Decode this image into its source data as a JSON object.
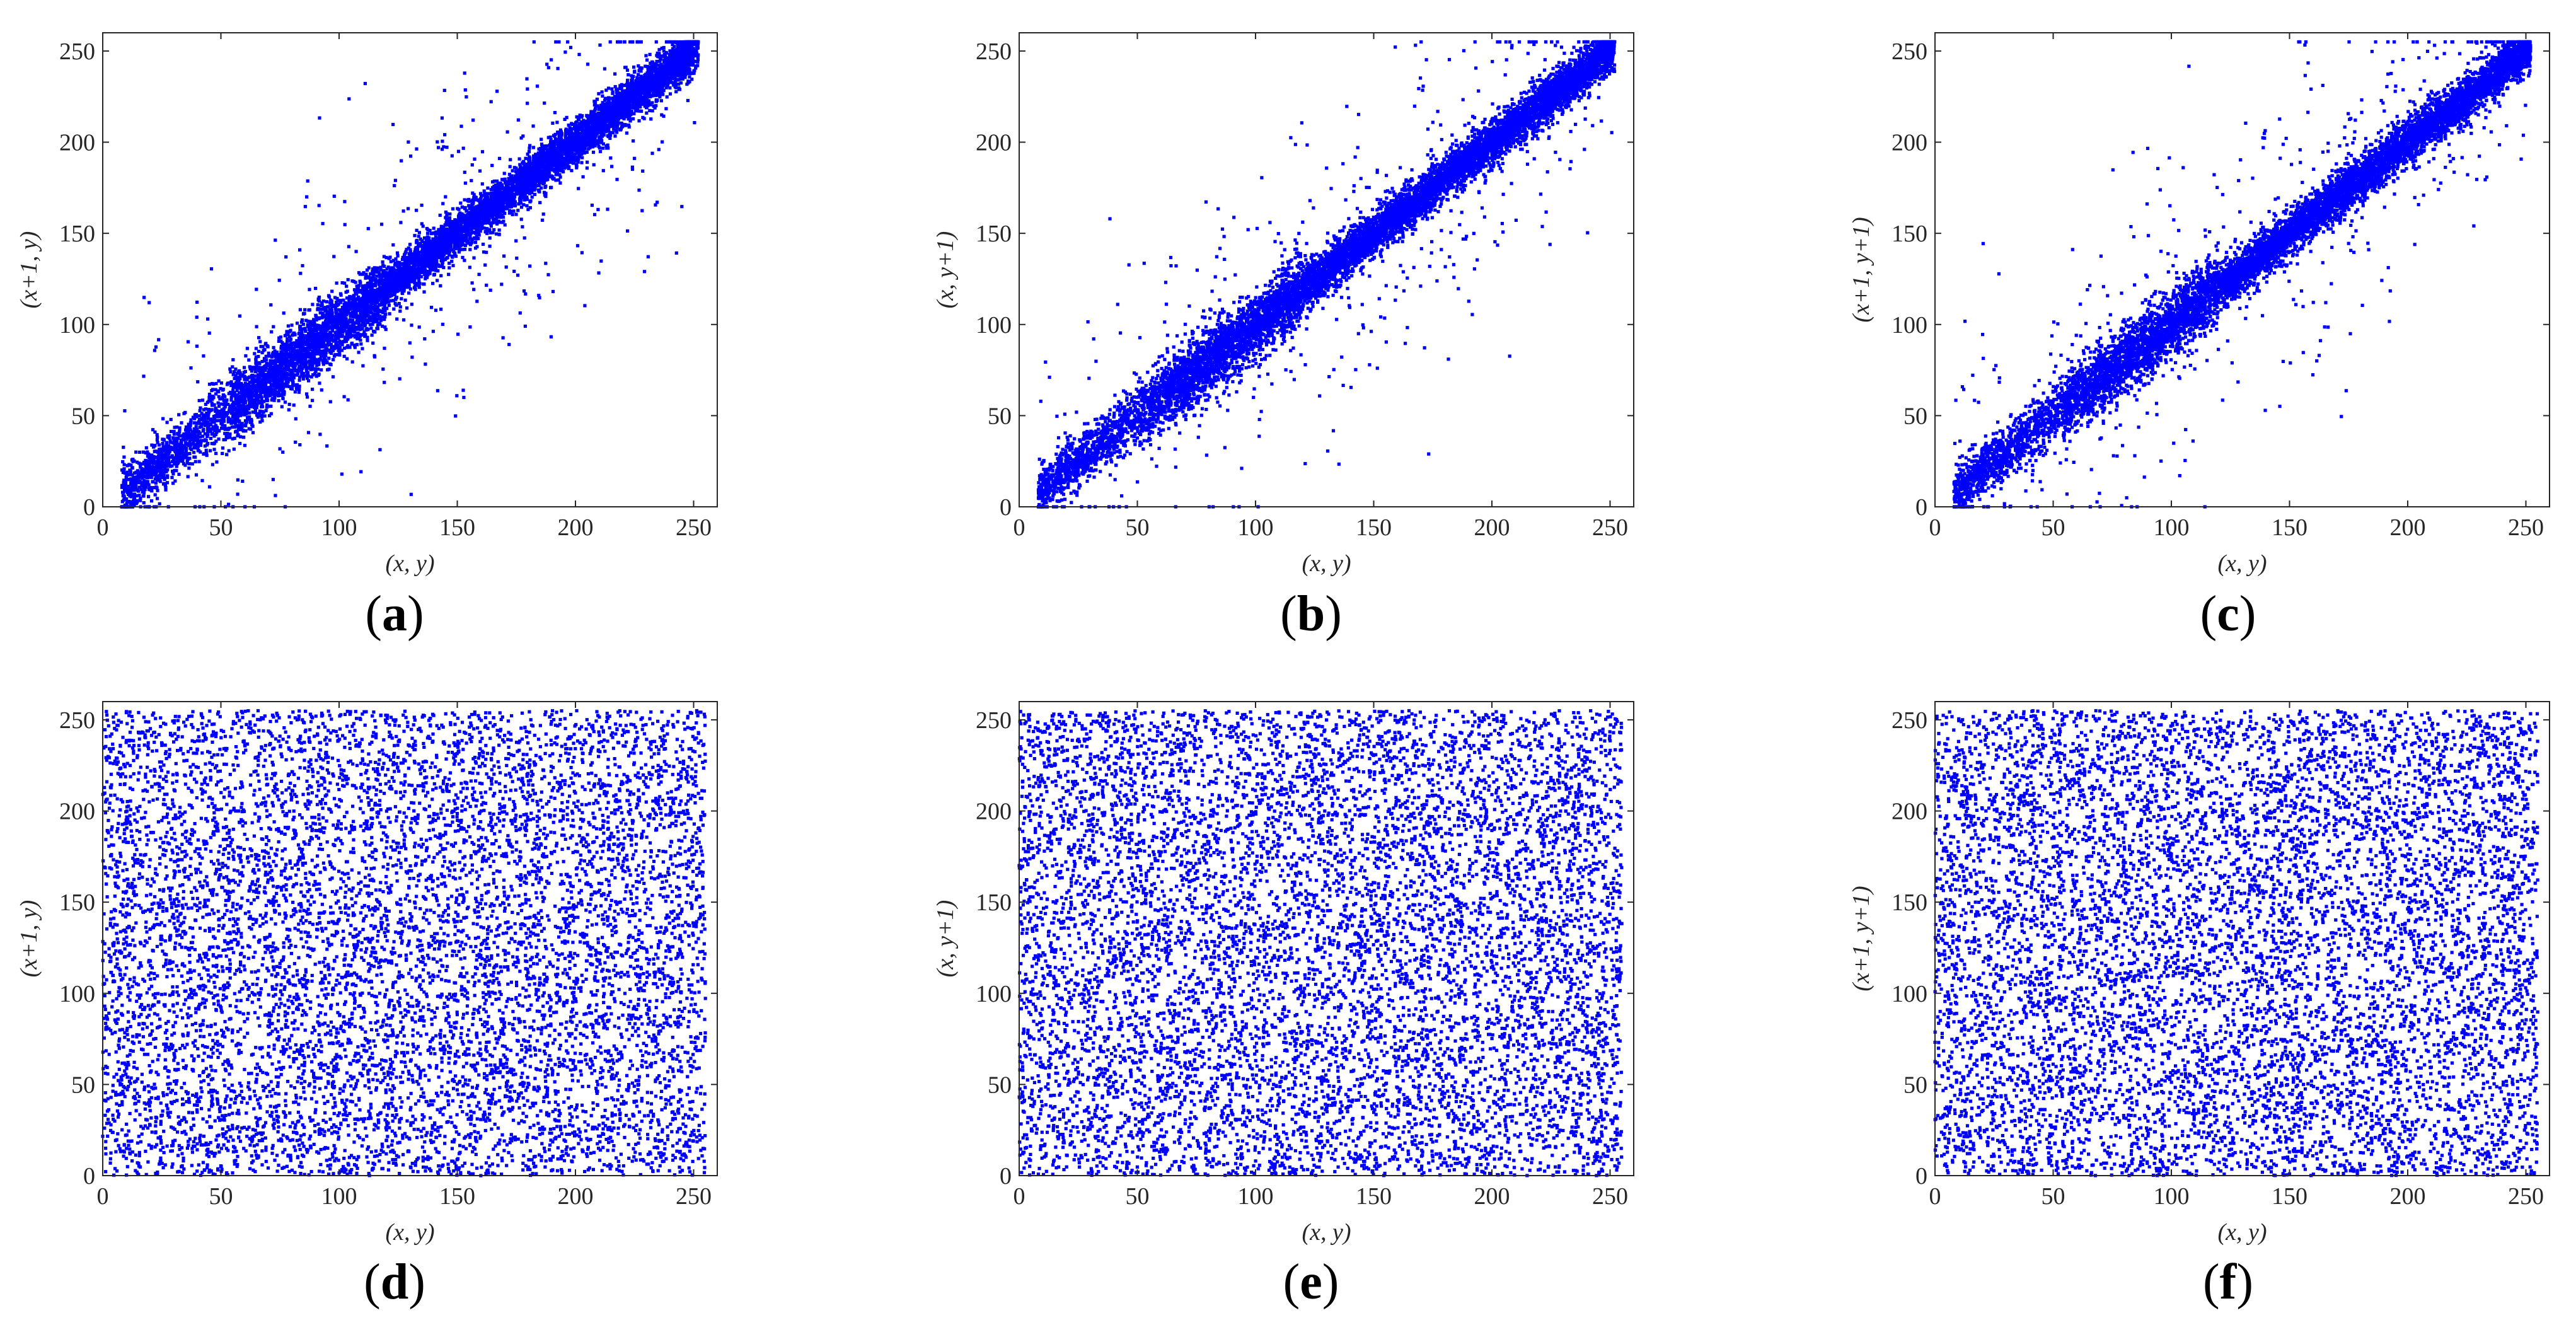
{
  "colors": {
    "points": "#0000ff",
    "axes": "#262626",
    "background": "#ffffff"
  },
  "chart_data": [
    {
      "id": "a",
      "type": "scatter",
      "panel_label": "a",
      "xlabel": "(x, y)",
      "ylabel": "(x+1, y)",
      "xlim": [
        0,
        260
      ],
      "ylim": [
        0,
        260
      ],
      "xticks": [
        0,
        50,
        100,
        150,
        200,
        250
      ],
      "yticks": [
        0,
        50,
        100,
        150,
        200,
        250
      ],
      "distribution": "correlated",
      "correlation": "strong",
      "n_points": 9000,
      "series": [
        {
          "values": [
            [
              12,
              15
            ],
            [
              20,
              24
            ],
            [
              25,
              20
            ],
            [
              45,
              52
            ],
            [
              60,
              58
            ],
            [
              75,
              80
            ],
            [
              100,
              98
            ],
            [
              120,
              125
            ],
            [
              150,
              148
            ],
            [
              175,
              180
            ],
            [
              200,
              198
            ],
            [
              225,
              228
            ],
            [
              245,
              248
            ]
          ]
        }
      ],
      "grid": false
    },
    {
      "id": "b",
      "type": "scatter",
      "panel_label": "b",
      "xlabel": "(x, y)",
      "ylabel": "(x, y+1)",
      "xlim": [
        0,
        260
      ],
      "ylim": [
        0,
        260
      ],
      "xticks": [
        0,
        50,
        100,
        150,
        200,
        250
      ],
      "yticks": [
        0,
        50,
        100,
        150,
        200,
        250
      ],
      "distribution": "correlated",
      "correlation": "strong",
      "n_points": 9000,
      "series": [
        {
          "values": [
            [
              12,
              18
            ],
            [
              20,
              22
            ],
            [
              28,
              25
            ],
            [
              55,
              60
            ],
            [
              65,
              68
            ],
            [
              80,
              85
            ],
            [
              100,
              105
            ],
            [
              125,
              120
            ],
            [
              150,
              155
            ],
            [
              175,
              172
            ],
            [
              200,
              205
            ],
            [
              225,
              222
            ],
            [
              245,
              250
            ]
          ]
        }
      ],
      "grid": false
    },
    {
      "id": "c",
      "type": "scatter",
      "panel_label": "c",
      "xlabel": "(x, y)",
      "ylabel": "(x+1, y+1)",
      "xlim": [
        0,
        260
      ],
      "ylim": [
        0,
        260
      ],
      "xticks": [
        0,
        50,
        100,
        150,
        200,
        250
      ],
      "yticks": [
        0,
        50,
        100,
        150,
        200,
        250
      ],
      "distribution": "correlated",
      "correlation": "strong",
      "n_points": 9000,
      "series": [
        {
          "values": [
            [
              12,
              20
            ],
            [
              20,
              25
            ],
            [
              25,
              18
            ],
            [
              55,
              58
            ],
            [
              65,
              70
            ],
            [
              80,
              78
            ],
            [
              100,
              102
            ],
            [
              125,
              128
            ],
            [
              150,
              145
            ],
            [
              175,
              178
            ],
            [
              200,
              202
            ],
            [
              225,
              226
            ],
            [
              245,
              250
            ]
          ]
        }
      ],
      "grid": false
    },
    {
      "id": "d",
      "type": "scatter",
      "panel_label": "d",
      "xlabel": "(x, y)",
      "ylabel": "(x+1, y)",
      "xlim": [
        0,
        260
      ],
      "ylim": [
        0,
        260
      ],
      "xticks": [
        0,
        50,
        100,
        150,
        200,
        250
      ],
      "yticks": [
        0,
        50,
        100,
        150,
        200,
        250
      ],
      "distribution": "uniform",
      "value_range": [
        0,
        255
      ],
      "n_points": 8500,
      "grid": false
    },
    {
      "id": "e",
      "type": "scatter",
      "panel_label": "e",
      "xlabel": "(x, y)",
      "ylabel": "(x, y+1)",
      "xlim": [
        0,
        260
      ],
      "ylim": [
        0,
        260
      ],
      "xticks": [
        0,
        50,
        100,
        150,
        200,
        250
      ],
      "yticks": [
        0,
        50,
        100,
        150,
        200,
        250
      ],
      "distribution": "uniform",
      "value_range": [
        0,
        255
      ],
      "n_points": 8500,
      "grid": false
    },
    {
      "id": "f",
      "type": "scatter",
      "panel_label": "f",
      "xlabel": "(x, y)",
      "ylabel": "(x+1, y+1)",
      "xlim": [
        0,
        260
      ],
      "ylim": [
        0,
        260
      ],
      "xticks": [
        0,
        50,
        100,
        150,
        200,
        250
      ],
      "yticks": [
        0,
        50,
        100,
        150,
        200,
        250
      ],
      "distribution": "uniform",
      "value_range": [
        0,
        255
      ],
      "n_points": 8500,
      "grid": false
    }
  ]
}
